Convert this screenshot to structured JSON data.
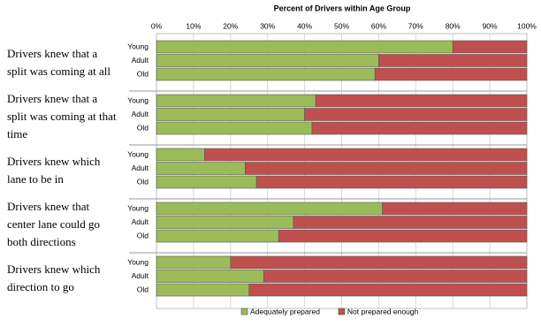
{
  "chart_data": {
    "type": "stacked-bar-horizontal-grouped",
    "x_label": "Percent of Drivers within Age Group",
    "xlim": [
      0,
      100
    ],
    "xticks": [
      {
        "value": 0,
        "label": "0%"
      },
      {
        "value": 10,
        "label": "10%"
      },
      {
        "value": 20,
        "label": "20%"
      },
      {
        "value": 30,
        "label": "30%"
      },
      {
        "value": 40,
        "label": "40%"
      },
      {
        "value": 50,
        "label": "50%"
      },
      {
        "value": 60,
        "label": "60%"
      },
      {
        "value": 70,
        "label": "70%"
      },
      {
        "value": 80,
        "label": "80%"
      },
      {
        "value": 90,
        "label": "90%"
      },
      {
        "value": 100,
        "label": "100%"
      }
    ],
    "grid": true,
    "legend": "bottom",
    "groups": [
      {
        "label": [
          "Drivers knew that a",
          "split was coming at all"
        ],
        "categories": [
          "Young",
          "Adult",
          "Old"
        ]
      },
      {
        "label": [
          "Drivers knew that a",
          "split was coming at that",
          "time"
        ],
        "categories": [
          "Young",
          "Adult",
          "Old"
        ]
      },
      {
        "label": [
          "Drivers knew which",
          "lane to be in"
        ],
        "categories": [
          "Young",
          "Adult",
          "Old"
        ]
      },
      {
        "label": [
          "Drivers knew that",
          "center lane could go",
          "both directions"
        ],
        "categories": [
          "Young",
          "Adult",
          "Old"
        ]
      },
      {
        "label": [
          "Drivers knew which",
          "direction to go"
        ],
        "categories": [
          "Young",
          "Adult",
          "Old"
        ]
      }
    ],
    "series": [
      {
        "name": "Adequately prepared",
        "color": "#9bbb59",
        "values": [
          [
            80,
            60,
            59
          ],
          [
            43,
            40,
            42
          ],
          [
            13,
            24,
            27
          ],
          [
            61,
            37,
            33
          ],
          [
            20,
            29,
            25
          ]
        ]
      },
      {
        "name": "Not prepared enough",
        "color": "#c0504d",
        "values": [
          [
            20,
            40,
            41
          ],
          [
            57,
            60,
            58
          ],
          [
            87,
            76,
            73
          ],
          [
            39,
            63,
            67
          ],
          [
            80,
            71,
            75
          ]
        ]
      }
    ]
  }
}
